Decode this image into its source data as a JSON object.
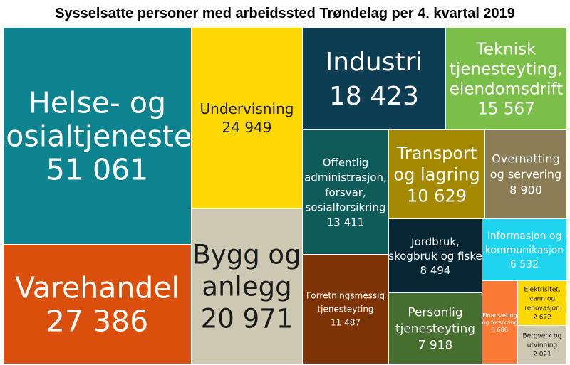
{
  "chart_data": {
    "type": "treemap",
    "title": "Sysselsatte personer med arbeidssted Trøndelag per 4. kvartal 2019",
    "items": [
      {
        "label": "Helse- og sosialtjenester",
        "lines": [
          "Helse- og",
          "sosialtjenester"
        ],
        "value": 51061,
        "value_label": "51 061",
        "color": "#0e8390",
        "text_color": "#ffffff"
      },
      {
        "label": "Varehandel",
        "lines": [
          "Varehandel"
        ],
        "value": 27386,
        "value_label": "27 386",
        "color": "#d94f0b",
        "text_color": "#ffffff"
      },
      {
        "label": "Undervisning",
        "lines": [
          "Undervisning"
        ],
        "value": 24949,
        "value_label": "24 949",
        "color": "#fdd802",
        "text_color": "#1a1a1a"
      },
      {
        "label": "Bygg og anlegg",
        "lines": [
          "Bygg og",
          "anlegg"
        ],
        "value": 20971,
        "value_label": "20 971",
        "color": "#cdc8b1",
        "text_color": "#1a1a1a"
      },
      {
        "label": "Industri",
        "lines": [
          "Industri"
        ],
        "value": 18423,
        "value_label": "18 423",
        "color": "#0d3d52",
        "text_color": "#ffffff"
      },
      {
        "label": "Teknisk tjenesteyting, eiendomsdrift",
        "lines": [
          "Teknisk",
          "tjenesteyting,",
          "eiendomsdrift"
        ],
        "value": 15567,
        "value_label": "15 567",
        "color": "#7bbf4a",
        "text_color": "#ffffff"
      },
      {
        "label": "Offentlig administrasjon, forsvar, sosialforsikring",
        "lines": [
          "Offentlig",
          "administrasjon,",
          "forsvar,",
          "sosialforsikring"
        ],
        "value": 13411,
        "value_label": "13 411",
        "color": "#0f5b59",
        "text_color": "#ffffff"
      },
      {
        "label": "Forretningsmessig tjenesteyting",
        "lines": [
          "Forretningsmessig",
          "tjenesteyting"
        ],
        "value": 11487,
        "value_label": "11 487",
        "color": "#7e3306",
        "text_color": "#ffffff"
      },
      {
        "label": "Transport og lagring",
        "lines": [
          "Transport",
          "og lagring"
        ],
        "value": 10629,
        "value_label": "10 629",
        "color": "#a48800",
        "text_color": "#ffffff"
      },
      {
        "label": "Overnatting og servering",
        "lines": [
          "Overnatting",
          "og servering"
        ],
        "value": 8900,
        "value_label": "8 900",
        "color": "#8a7d55",
        "text_color": "#ffffff"
      },
      {
        "label": "Jordbruk, skogbruk og fiske",
        "lines": [
          "Jordbruk,",
          "skogbruk og fiske"
        ],
        "value": 8494,
        "value_label": "8 494",
        "color": "#082534",
        "text_color": "#ffffff"
      },
      {
        "label": "Personlig tjenesteyting",
        "lines": [
          "Personlig",
          "tjenesteyting"
        ],
        "value": 7918,
        "value_label": "7 918",
        "color": "#466e2f",
        "text_color": "#ffffff"
      },
      {
        "label": "Informasjon og kommunikasjon",
        "lines": [
          "Informasjon og",
          "kommunikasjon"
        ],
        "value": 6532,
        "value_label": "6 532",
        "color": "#1ed4ee",
        "text_color": "#ffffff"
      },
      {
        "label": "Finansiering og forsikring",
        "lines": [
          "Finansiering",
          "og forsikring"
        ],
        "value": 3688,
        "value_label": "3 688",
        "color": "#fb7a36",
        "text_color": "#ffffff"
      },
      {
        "label": "Elektrisitet, vann og renovasjon",
        "lines": [
          "Elektrisitet,",
          "vann og",
          "renovasjon"
        ],
        "value": 2672,
        "value_label": "2 672",
        "color": "#fdd802",
        "text_color": "#1a1a1a"
      },
      {
        "label": "Bergverk og utvinning",
        "lines": [
          "Bergverk og",
          "utvinning"
        ],
        "value": 2021,
        "value_label": "2 021",
        "color": "#cdc8b1",
        "text_color": "#1a1a1a"
      }
    ]
  }
}
